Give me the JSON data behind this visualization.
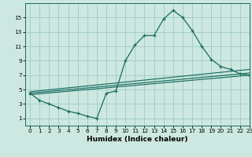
{
  "line1_x": [
    0,
    1,
    2,
    3,
    4,
    5,
    6,
    7,
    8,
    9,
    10,
    11,
    12,
    13,
    14,
    15,
    16,
    17,
    18,
    19,
    20,
    21,
    22,
    23
  ],
  "line1_y": [
    4.5,
    3.5,
    3.0,
    2.5,
    2.0,
    1.7,
    1.3,
    1.0,
    4.5,
    4.8,
    9.0,
    11.2,
    12.5,
    12.5,
    14.8,
    16.0,
    15.0,
    13.2,
    11.0,
    9.2,
    8.2,
    7.8,
    7.2,
    7.0
  ],
  "line2_x": [
    0,
    23
  ],
  "line2_y": [
    4.7,
    7.8
  ],
  "line3_x": [
    0,
    23
  ],
  "line3_y": [
    4.5,
    7.3
  ],
  "line4_x": [
    0,
    23
  ],
  "line4_y": [
    4.3,
    7.0
  ],
  "line_color": "#1a6b5e",
  "bg_color": "#cce8e0",
  "grid_color": "#9eccc4",
  "xlabel": "Humidex (Indice chaleur)",
  "xlim": [
    -0.5,
    23
  ],
  "ylim": [
    0,
    17
  ],
  "yticks": [
    1,
    3,
    5,
    7,
    9,
    11,
    13,
    15
  ],
  "xticks": [
    0,
    1,
    2,
    3,
    4,
    5,
    6,
    7,
    8,
    9,
    10,
    11,
    12,
    13,
    14,
    15,
    16,
    17,
    18,
    19,
    20,
    21,
    22,
    23
  ],
  "xlabel_fontsize": 6.5,
  "tick_fontsize": 5.2
}
